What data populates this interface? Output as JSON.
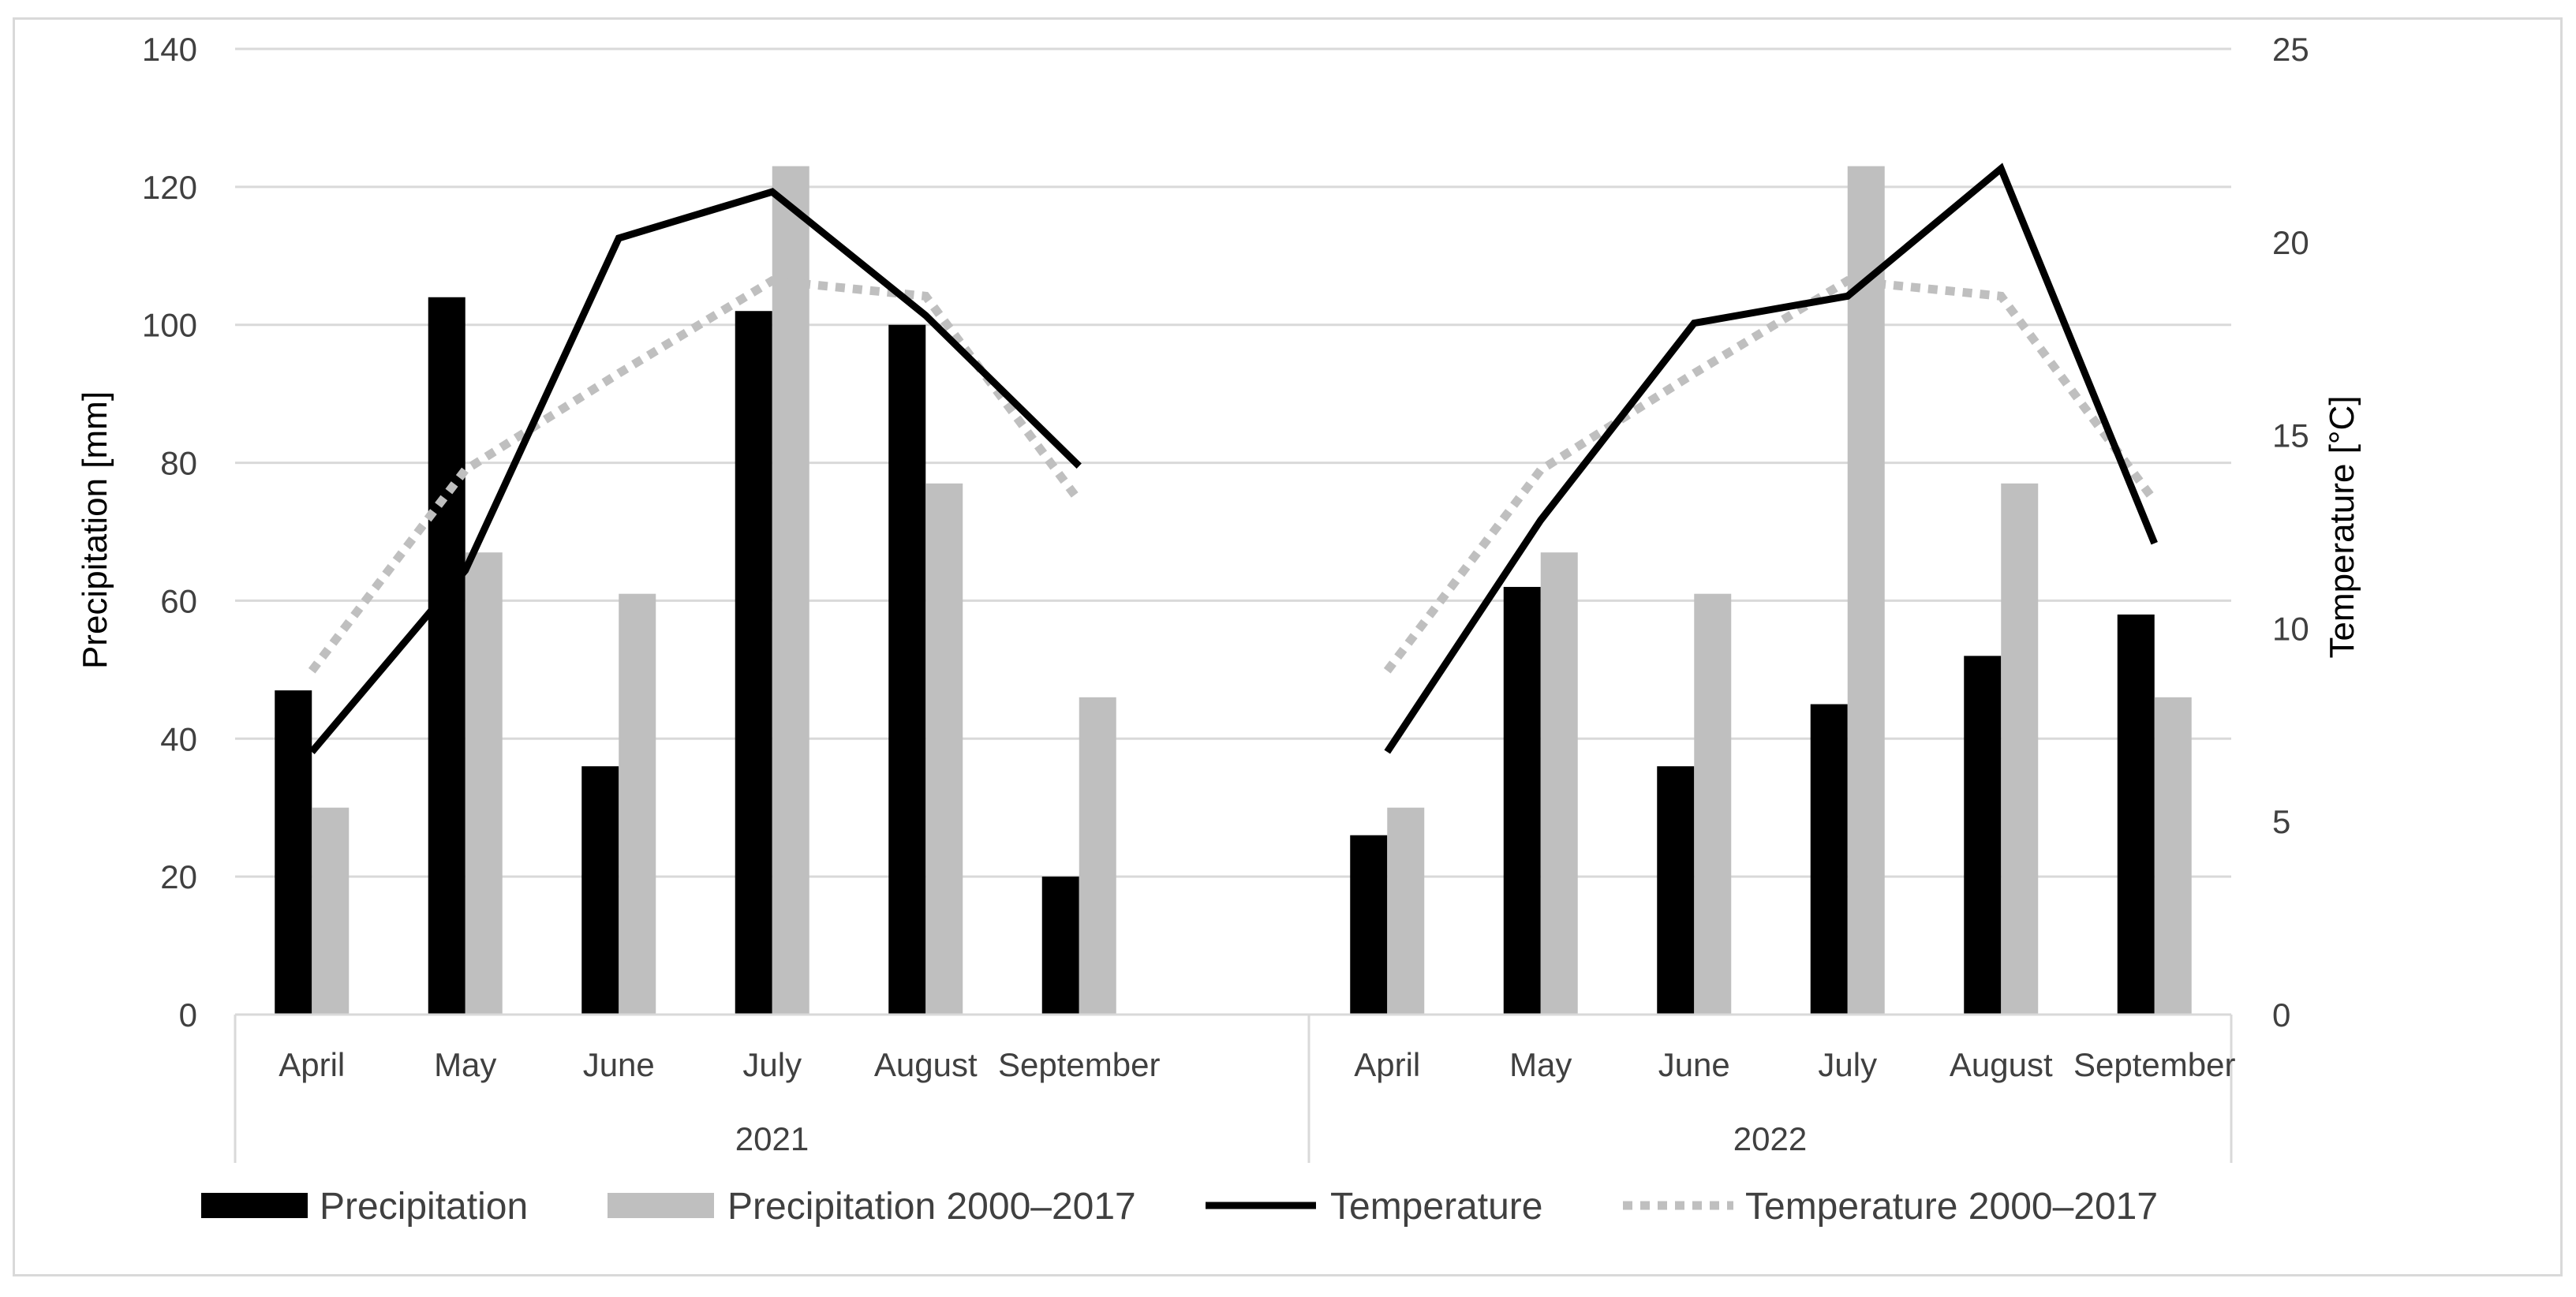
{
  "chart_data": {
    "type": "bar",
    "title": "",
    "groups": [
      {
        "label": "2021",
        "categories": [
          "April",
          "May",
          "June",
          "July",
          "August",
          "September"
        ]
      },
      {
        "label": "2022",
        "categories": [
          "April",
          "May",
          "June",
          "July",
          "August",
          "September"
        ]
      }
    ],
    "ylabel": "Precipitation [mm]",
    "y2label": "Temperature [°C]",
    "ylim": [
      0,
      140
    ],
    "y2lim": [
      0,
      25
    ],
    "yticks": [
      "0",
      "20",
      "40",
      "60",
      "80",
      "100",
      "120",
      "140"
    ],
    "y2ticks": [
      "0",
      "5",
      "10",
      "15",
      "20",
      "25"
    ],
    "grid": true,
    "legend_position": "bottom",
    "series": [
      {
        "name": "Precipitation",
        "type": "bar",
        "axis": "left",
        "color": "#000000",
        "values": [
          47,
          104,
          36,
          102,
          100,
          20,
          26,
          62,
          36,
          45,
          52,
          58
        ]
      },
      {
        "name": "Precipitation 2000–2017",
        "type": "bar",
        "axis": "left",
        "color": "#bfbfbf",
        "values": [
          30,
          67,
          61,
          123,
          77,
          46,
          30,
          67,
          61,
          123,
          77,
          46
        ]
      },
      {
        "name": "Temperature",
        "type": "line",
        "axis": "right",
        "color": "#000000",
        "dash": "solid",
        "values": [
          6.8,
          11.5,
          20.1,
          21.3,
          18.1,
          14.2,
          6.8,
          12.8,
          17.9,
          18.6,
          21.9,
          12.2
        ]
      },
      {
        "name": "Temperature 2000–2017",
        "type": "line",
        "axis": "right",
        "color": "#bfbfbf",
        "dash": "dotted",
        "values": [
          8.9,
          14.1,
          16.6,
          19.0,
          18.6,
          13.3,
          8.9,
          14.1,
          16.6,
          19.0,
          18.6,
          13.3
        ]
      }
    ]
  }
}
